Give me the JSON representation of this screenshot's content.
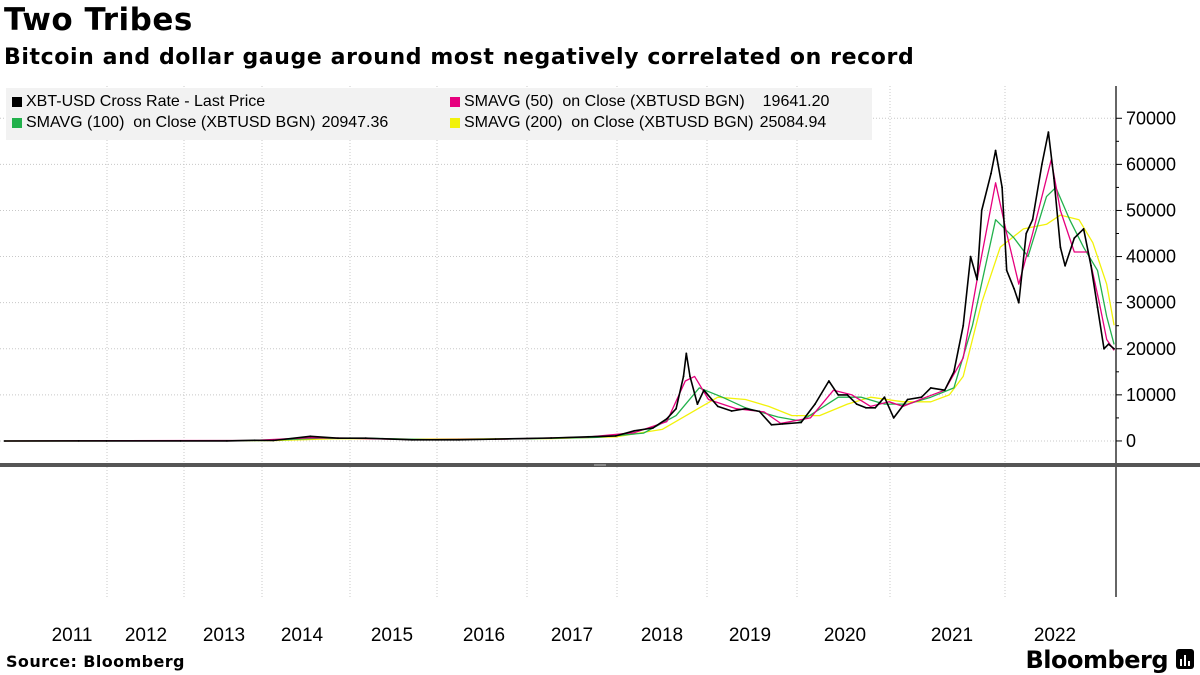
{
  "header": {
    "title": "Two Tribes",
    "subtitle": "Bitcoin and dollar gauge around most negatively correlated on record"
  },
  "footer": {
    "source": "Source: Bloomberg",
    "brand": "Bloomberg"
  },
  "legend": {
    "items": [
      {
        "label": "XBT-USD Cross Rate - Last Price",
        "value": "",
        "color": "#000000"
      },
      {
        "label": "SMAVG (50)  on Close (XBTUSD BGN)",
        "value": "19641.20",
        "color": "#e6007e"
      },
      {
        "label": "SMAVG (100)  on Close (XBTUSD BGN)",
        "value": "20947.36",
        "color": "#22b14c"
      },
      {
        "label": "SMAVG (200)  on Close (XBTUSD BGN)",
        "value": "25084.94",
        "color": "#f2f20a"
      }
    ]
  },
  "chart_data": {
    "type": "line",
    "title": "Two Tribes",
    "subtitle": "Bitcoin and dollar gauge around most negatively correlated on record",
    "x_unit": "year",
    "x_ticks": [
      "2011",
      "2012",
      "2013",
      "2014",
      "2015",
      "2016",
      "2017",
      "2018",
      "2019",
      "2020",
      "2021",
      "2022"
    ],
    "xlim": [
      2010.55,
      2022.6
    ],
    "ylim": [
      -5000,
      77000
    ],
    "y_ticks": [
      0,
      10000,
      20000,
      30000,
      40000,
      50000,
      60000,
      70000
    ],
    "grid": true,
    "legend_position": "top-left",
    "series": [
      {
        "name": "XBT-USD Cross Rate - Last Price",
        "color": "#000000",
        "points": [
          [
            2010.6,
            0
          ],
          [
            2011.4,
            15
          ],
          [
            2011.7,
            8
          ],
          [
            2012.5,
            10
          ],
          [
            2013.0,
            15
          ],
          [
            2013.3,
            150
          ],
          [
            2013.5,
            100
          ],
          [
            2013.9,
            1000
          ],
          [
            2014.2,
            600
          ],
          [
            2014.5,
            600
          ],
          [
            2015.0,
            250
          ],
          [
            2015.5,
            250
          ],
          [
            2015.9,
            400
          ],
          [
            2016.5,
            650
          ],
          [
            2016.9,
            900
          ],
          [
            2017.2,
            1100
          ],
          [
            2017.4,
            2200
          ],
          [
            2017.6,
            2800
          ],
          [
            2017.75,
            4800
          ],
          [
            2017.85,
            7000
          ],
          [
            2017.93,
            14000
          ],
          [
            2017.96,
            19000
          ],
          [
            2018.0,
            14000
          ],
          [
            2018.08,
            8000
          ],
          [
            2018.15,
            11000
          ],
          [
            2018.3,
            7500
          ],
          [
            2018.45,
            6500
          ],
          [
            2018.6,
            7000
          ],
          [
            2018.75,
            6400
          ],
          [
            2018.88,
            3500
          ],
          [
            2019.0,
            3700
          ],
          [
            2019.2,
            4000
          ],
          [
            2019.35,
            8000
          ],
          [
            2019.5,
            13000
          ],
          [
            2019.6,
            10000
          ],
          [
            2019.7,
            10000
          ],
          [
            2019.8,
            8000
          ],
          [
            2019.9,
            7200
          ],
          [
            2020.0,
            7200
          ],
          [
            2020.1,
            9500
          ],
          [
            2020.2,
            5000
          ],
          [
            2020.35,
            9000
          ],
          [
            2020.5,
            9500
          ],
          [
            2020.6,
            11500
          ],
          [
            2020.75,
            11000
          ],
          [
            2020.85,
            15000
          ],
          [
            2020.95,
            25000
          ],
          [
            2021.03,
            40000
          ],
          [
            2021.1,
            35000
          ],
          [
            2021.15,
            50000
          ],
          [
            2021.25,
            58000
          ],
          [
            2021.3,
            63000
          ],
          [
            2021.37,
            55000
          ],
          [
            2021.42,
            37000
          ],
          [
            2021.5,
            33000
          ],
          [
            2021.55,
            30000
          ],
          [
            2021.63,
            45000
          ],
          [
            2021.7,
            48000
          ],
          [
            2021.8,
            60000
          ],
          [
            2021.87,
            67000
          ],
          [
            2021.93,
            57000
          ],
          [
            2022.0,
            42000
          ],
          [
            2022.05,
            38000
          ],
          [
            2022.15,
            44000
          ],
          [
            2022.25,
            46000
          ],
          [
            2022.33,
            38000
          ],
          [
            2022.4,
            29000
          ],
          [
            2022.47,
            20000
          ],
          [
            2022.52,
            21000
          ],
          [
            2022.58,
            20000
          ]
        ]
      },
      {
        "name": "SMAVG (50)  on Close (XBTUSD BGN)",
        "color": "#e6007e",
        "points": [
          [
            2010.6,
            0
          ],
          [
            2013.3,
            120
          ],
          [
            2013.9,
            700
          ],
          [
            2014.3,
            600
          ],
          [
            2015.0,
            300
          ],
          [
            2016.0,
            400
          ],
          [
            2016.9,
            850
          ],
          [
            2017.4,
            1800
          ],
          [
            2017.75,
            4200
          ],
          [
            2017.95,
            13000
          ],
          [
            2018.05,
            14000
          ],
          [
            2018.2,
            9000
          ],
          [
            2018.5,
            7000
          ],
          [
            2018.8,
            6300
          ],
          [
            2018.98,
            3800
          ],
          [
            2019.3,
            5000
          ],
          [
            2019.55,
            11000
          ],
          [
            2019.75,
            10000
          ],
          [
            2019.95,
            7500
          ],
          [
            2020.15,
            8500
          ],
          [
            2020.3,
            7500
          ],
          [
            2020.55,
            9500
          ],
          [
            2020.75,
            11000
          ],
          [
            2020.95,
            18000
          ],
          [
            2021.1,
            35000
          ],
          [
            2021.3,
            56000
          ],
          [
            2021.42,
            45000
          ],
          [
            2021.55,
            34000
          ],
          [
            2021.7,
            45000
          ],
          [
            2021.9,
            61000
          ],
          [
            2022.0,
            50000
          ],
          [
            2022.15,
            41000
          ],
          [
            2022.3,
            41000
          ],
          [
            2022.42,
            30000
          ],
          [
            2022.5,
            22000
          ],
          [
            2022.58,
            19641
          ]
        ]
      },
      {
        "name": "SMAVG (100)  on Close (XBTUSD BGN)",
        "color": "#22b14c",
        "points": [
          [
            2010.6,
            0
          ],
          [
            2013.4,
            100
          ],
          [
            2014.0,
            600
          ],
          [
            2014.5,
            600
          ],
          [
            2015.2,
            300
          ],
          [
            2016.2,
            450
          ],
          [
            2017.0,
            800
          ],
          [
            2017.5,
            1700
          ],
          [
            2017.85,
            5500
          ],
          [
            2018.1,
            11500
          ],
          [
            2018.35,
            9500
          ],
          [
            2018.6,
            7200
          ],
          [
            2018.95,
            5200
          ],
          [
            2019.2,
            4300
          ],
          [
            2019.6,
            9500
          ],
          [
            2019.85,
            9500
          ],
          [
            2020.1,
            8000
          ],
          [
            2020.35,
            8000
          ],
          [
            2020.6,
            9500
          ],
          [
            2020.85,
            11500
          ],
          [
            2021.05,
            25000
          ],
          [
            2021.3,
            48000
          ],
          [
            2021.5,
            44000
          ],
          [
            2021.65,
            40000
          ],
          [
            2021.85,
            53000
          ],
          [
            2021.95,
            55000
          ],
          [
            2022.1,
            48000
          ],
          [
            2022.25,
            42000
          ],
          [
            2022.4,
            37000
          ],
          [
            2022.5,
            27000
          ],
          [
            2022.58,
            20947
          ]
        ]
      },
      {
        "name": "SMAVG (200)  on Close (XBTUSD BGN)",
        "color": "#f2f20a",
        "points": [
          [
            2010.6,
            0
          ],
          [
            2013.5,
            80
          ],
          [
            2014.2,
            500
          ],
          [
            2015.0,
            400
          ],
          [
            2016.5,
            500
          ],
          [
            2017.2,
            900
          ],
          [
            2017.7,
            2500
          ],
          [
            2018.0,
            6000
          ],
          [
            2018.3,
            9500
          ],
          [
            2018.6,
            9000
          ],
          [
            2018.85,
            7500
          ],
          [
            2019.1,
            5500
          ],
          [
            2019.4,
            5500
          ],
          [
            2019.7,
            8000
          ],
          [
            2019.95,
            9500
          ],
          [
            2020.3,
            8500
          ],
          [
            2020.6,
            8500
          ],
          [
            2020.8,
            10000
          ],
          [
            2020.95,
            14000
          ],
          [
            2021.15,
            30000
          ],
          [
            2021.35,
            42000
          ],
          [
            2021.6,
            46000
          ],
          [
            2021.85,
            47000
          ],
          [
            2022.0,
            49000
          ],
          [
            2022.2,
            48000
          ],
          [
            2022.35,
            43000
          ],
          [
            2022.5,
            34000
          ],
          [
            2022.58,
            25085
          ]
        ]
      }
    ]
  }
}
